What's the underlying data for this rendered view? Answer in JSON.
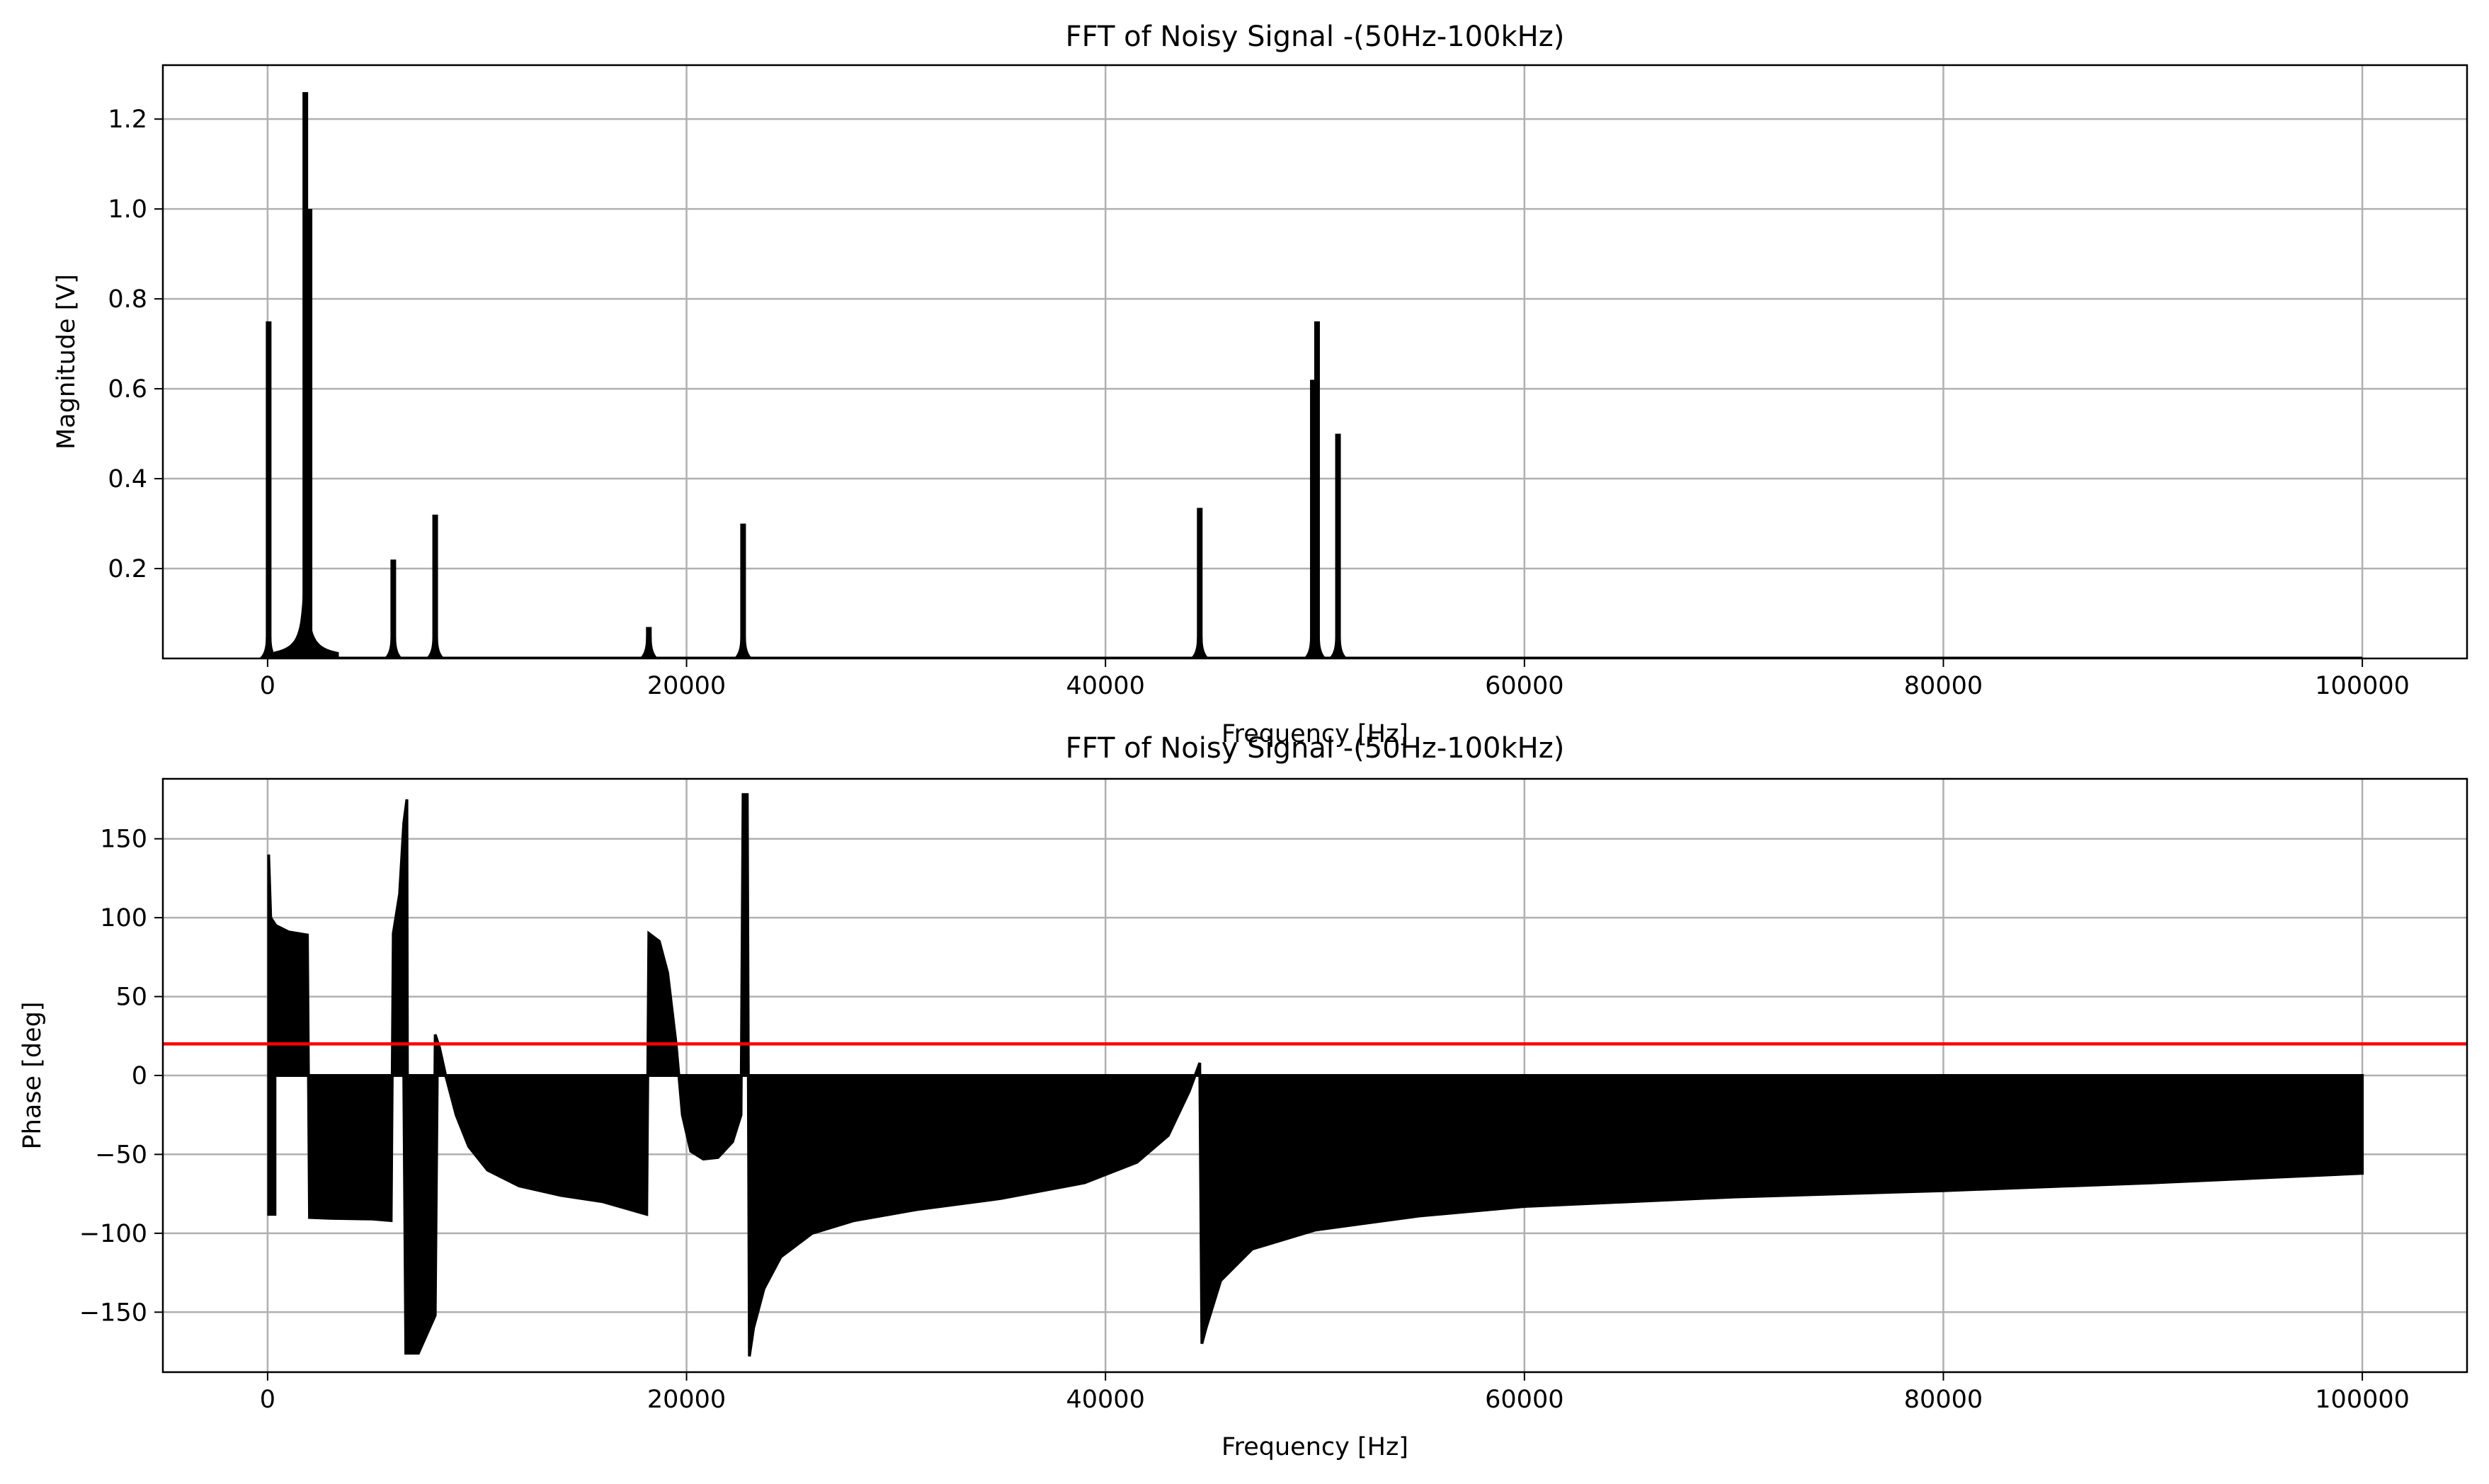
{
  "chart_data": [
    {
      "type": "line",
      "title": "FFT of Noisy Signal -(50Hz-100kHz)",
      "xlabel": "Frequency [Hz]",
      "ylabel": "Magnitude [V]",
      "xlim": [
        -5000,
        105000
      ],
      "ylim": [
        0,
        1.32
      ],
      "xticks": [
        0,
        20000,
        40000,
        60000,
        80000,
        100000
      ],
      "xtick_labels": [
        "0",
        "20000",
        "40000",
        "60000",
        "80000",
        "100000"
      ],
      "yticks": [
        0.2,
        0.4,
        0.6,
        0.8,
        1.0,
        1.2
      ],
      "ytick_labels": [
        "0.2",
        "0.4",
        "0.6",
        "0.8",
        "1.0",
        "1.2"
      ],
      "grid": true,
      "series": [
        {
          "color": "#000000",
          "peaks": [
            {
              "x": 50,
              "y": 0.75
            },
            {
              "x": 1800,
              "y": 1.26
            },
            {
              "x": 2000,
              "y": 1.0
            },
            {
              "x": 6000,
              "y": 0.22
            },
            {
              "x": 8000,
              "y": 0.32
            },
            {
              "x": 18200,
              "y": 0.07
            },
            {
              "x": 22700,
              "y": 0.3
            },
            {
              "x": 44500,
              "y": 0.335
            },
            {
              "x": 49900,
              "y": 0.62
            },
            {
              "x": 50100,
              "y": 0.75
            },
            {
              "x": 51100,
              "y": 0.5
            }
          ]
        }
      ]
    },
    {
      "type": "area",
      "title": "FFT of Noisy Signal -(50Hz-100kHz)",
      "xlabel": "Frequency [Hz]",
      "ylabel": "Phase [deg]",
      "xlim": [
        -5000,
        105000
      ],
      "ylim": [
        -188,
        188
      ],
      "xticks": [
        0,
        20000,
        40000,
        60000,
        80000,
        100000
      ],
      "xtick_labels": [
        "0",
        "20000",
        "40000",
        "60000",
        "80000",
        "100000"
      ],
      "yticks": [
        -150,
        -100,
        -50,
        0,
        50,
        100,
        150
      ],
      "ytick_labels": [
        "−150",
        "−100",
        "−50",
        "0",
        "50",
        "100",
        "150"
      ],
      "grid": true,
      "reference_line": {
        "y": 20,
        "color": "#ff0000"
      },
      "series": [
        {
          "color": "#000000",
          "envelope": [
            [
              50,
              140
            ],
            [
              150,
              100
            ],
            [
              400,
              95
            ],
            [
              1000,
              91
            ],
            [
              1900,
              89
            ],
            [
              2000,
              -90
            ],
            [
              3000,
              -90.5
            ],
            [
              5000,
              -91
            ],
            [
              5900,
              -92
            ],
            [
              6000,
              90
            ],
            [
              6300,
              115
            ],
            [
              6500,
              160
            ],
            [
              6650,
              175
            ],
            [
              6700,
              -175
            ],
            [
              6850,
              -160
            ],
            [
              7000,
              -130
            ],
            [
              7300,
              -125
            ],
            [
              7600,
              -132
            ],
            [
              7900,
              -152
            ],
            [
              8000,
              26
            ],
            [
              8200,
              18
            ],
            [
              8500,
              0
            ],
            [
              9000,
              -25
            ],
            [
              9600,
              -45
            ],
            [
              10500,
              -60
            ],
            [
              12000,
              -70
            ],
            [
              14000,
              -76
            ],
            [
              16000,
              -80
            ],
            [
              18100,
              -88
            ],
            [
              18200,
              90
            ],
            [
              18700,
              85
            ],
            [
              19100,
              65
            ],
            [
              19500,
              20
            ],
            [
              19800,
              -25
            ],
            [
              20200,
              -48
            ],
            [
              20800,
              -53
            ],
            [
              21500,
              -52
            ],
            [
              22200,
              -42
            ],
            [
              22600,
              -25
            ],
            [
              22700,
              178
            ],
            [
              22900,
              178
            ],
            [
              23000,
              -178
            ],
            [
              23200,
              -160
            ],
            [
              23700,
              -135
            ],
            [
              24500,
              -115
            ],
            [
              26000,
              -100
            ],
            [
              28000,
              -92
            ],
            [
              31000,
              -85
            ],
            [
              35000,
              -78
            ],
            [
              39000,
              -68
            ],
            [
              41500,
              -55
            ],
            [
              43000,
              -38
            ],
            [
              44000,
              -10
            ],
            [
              44500,
              8
            ],
            [
              44600,
              -170
            ],
            [
              44800,
              -160
            ],
            [
              45500,
              -130
            ],
            [
              47000,
              -110
            ],
            [
              50000,
              -98
            ],
            [
              55000,
              -89
            ],
            [
              60000,
              -83
            ],
            [
              70000,
              -77
            ],
            [
              80000,
              -73
            ],
            [
              90000,
              -68
            ],
            [
              95000,
              -65
            ],
            [
              100000,
              -62
            ]
          ],
          "lower_envelope": [
            [
              50,
              -88
            ],
            [
              350,
              -88
            ],
            [
              351,
              0
            ],
            [
              6500,
              0
            ],
            [
              6600,
              -176
            ],
            [
              7200,
              -176
            ],
            [
              8000,
              -152
            ],
            [
              8100,
              0
            ]
          ]
        }
      ]
    }
  ]
}
